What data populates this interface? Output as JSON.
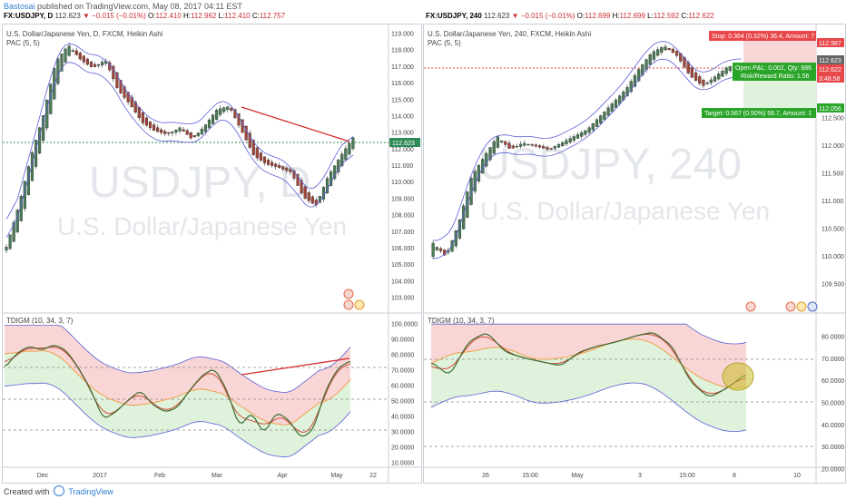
{
  "header": {
    "author": "Bastosai",
    "published": "published on TradingView.com, May 08, 2017 04:11 EST"
  },
  "left": {
    "symbol": "FX:USDJPY, D",
    "last": "112.623",
    "change": "▼ −0.015 (−0.01%)",
    "o_label": "O:",
    "o": "112.410",
    "h_label": "H:",
    "h": "112.962",
    "l_label": "L:",
    "l": "112.410",
    "c_label": "C:",
    "c": "112.757",
    "title": "U.S. Dollar/Japanese Yen, D, FXCM, Heikin Ashi",
    "pac": "PAC (5, 5)",
    "watermark_symbol": "USDJPY, D",
    "watermark_name": "U.S. Dollar/Japanese Yen",
    "price_tag": "112.623",
    "osc_title": "TDIGM (10, 34, 3, 7)",
    "price_axis": [
      "119.000",
      "118.000",
      "117.000",
      "116.000",
      "115.000",
      "114.000",
      "113.000",
      "112.000",
      "111.000",
      "110.000",
      "109.000",
      "108.000",
      "107.000",
      "106.000",
      "105.000",
      "104.000",
      "103.000"
    ],
    "osc_axis": [
      "100.0000",
      "90.0000",
      "80.0000",
      "70.0000",
      "60.0000",
      "50.0000",
      "40.0000",
      "30.0000",
      "20.0000",
      "10.0000"
    ],
    "time_axis": [
      "Dec",
      "2017",
      "Feb",
      "Mar",
      "Apr",
      "May",
      "22"
    ]
  },
  "right": {
    "symbol": "FX:USDJPY, 240",
    "last": "112.623",
    "change": "▼ −0.015 (−0.01%)",
    "o_label": "O:",
    "o": "112.699",
    "h_label": "H:",
    "h": "112.699",
    "l_label": "L:",
    "l": "112.592",
    "c_label": "C:",
    "c": "112.622",
    "title": "U.S. Dollar/Japanese Yen, 240, FXCM, Heikin Ashi",
    "pac": "PAC (5, 5)",
    "watermark_symbol": "USDJPY, 240",
    "watermark_name": "U.S. Dollar/Japanese Yen",
    "stop_label": "Stop: 0.364 (0.32%) 36.4, Amount: 7",
    "open_pnl": "Open P&L: 0.002, Qty: 686",
    "rr_label": "Risk/Reward Ratio: 1.56",
    "target_label": "Target: 0.567 (0.50%) 56.7, Amount: 1",
    "tags": [
      "112.987",
      "112.623",
      "112.622",
      "3:48:58",
      "112.056"
    ],
    "osc_title": "TDIGM (10, 34, 3, 7)",
    "price_axis": [
      "112.500",
      "112.000",
      "111.500",
      "111.000",
      "110.500",
      "110.000",
      "109.500"
    ],
    "osc_axis": [
      "80.0000",
      "70.0000",
      "60.0000",
      "50.0000",
      "40.0000",
      "30.0000",
      "20.0000"
    ],
    "time_axis": [
      "26",
      "15:00",
      "May",
      "3",
      "15:00",
      "8",
      "10"
    ]
  },
  "footer": {
    "created": "Created with",
    "brand": "TradingView"
  },
  "colors": {
    "up": "#4a7a55",
    "down": "#a0453a",
    "pac": "#5b5fd6",
    "trend": "#d62e2e",
    "red_zone": "#f9d6d6",
    "green_zone": "#dff2dc",
    "stop": "#e8474a",
    "target": "#2aa52a"
  },
  "chart_data": [
    {
      "type": "line",
      "name": "left-price",
      "title": "U.S. Dollar/Japanese Yen, D, FXCM, Heikin Ashi",
      "series": [
        {
          "name": "USDJPY close (approx)",
          "values": [
            106.0,
            108.5,
            111.5,
            114.0,
            117.2,
            118.2,
            117.3,
            116.8,
            117.3,
            115.5,
            114.6,
            113.5,
            113.0,
            112.8,
            113.2,
            112.5,
            113.3,
            114.3,
            114.5,
            113.0,
            111.5,
            111.0,
            110.8,
            110.5,
            109.0,
            108.5,
            110.3,
            111.5,
            112.6
          ]
        }
      ],
      "ylim": [
        103,
        119
      ]
    },
    {
      "type": "line",
      "name": "left-oscillator",
      "title": "TDIGM (10, 34, 3, 7)",
      "series": [
        {
          "name": "TDIGM (approx)",
          "values": [
            70,
            80,
            85,
            82,
            86,
            82,
            70,
            55,
            35,
            40,
            48,
            55,
            45,
            40,
            43,
            55,
            65,
            70,
            55,
            30,
            40,
            25,
            40,
            35,
            22,
            28,
            55,
            70,
            75
          ]
        }
      ],
      "ylim": [
        5,
        100
      ]
    },
    {
      "type": "line",
      "name": "right-price",
      "title": "U.S. Dollar/Japanese Yen, 240, FXCM, Heikin Ashi",
      "series": [
        {
          "name": "USDJPY close (approx)",
          "values": [
            110.0,
            109.8,
            110.3,
            111.0,
            111.3,
            111.6,
            111.4,
            111.5,
            111.45,
            111.4,
            111.5,
            111.6,
            111.7,
            111.9,
            112.1,
            112.3,
            112.6,
            112.85,
            112.95,
            112.8,
            112.5,
            112.35,
            112.5,
            112.65,
            112.6
          ]
        }
      ],
      "ylim": [
        109.2,
        113.0
      ]
    },
    {
      "type": "line",
      "name": "right-oscillator",
      "title": "TDIGM (10, 34, 3, 7)",
      "series": [
        {
          "name": "TDIGM (approx)",
          "values": [
            70,
            63,
            80,
            85,
            75,
            72,
            70,
            68,
            75,
            78,
            80,
            83,
            85,
            78,
            60,
            52,
            57,
            64
          ]
        }
      ],
      "ylim": [
        18,
        90
      ]
    }
  ]
}
